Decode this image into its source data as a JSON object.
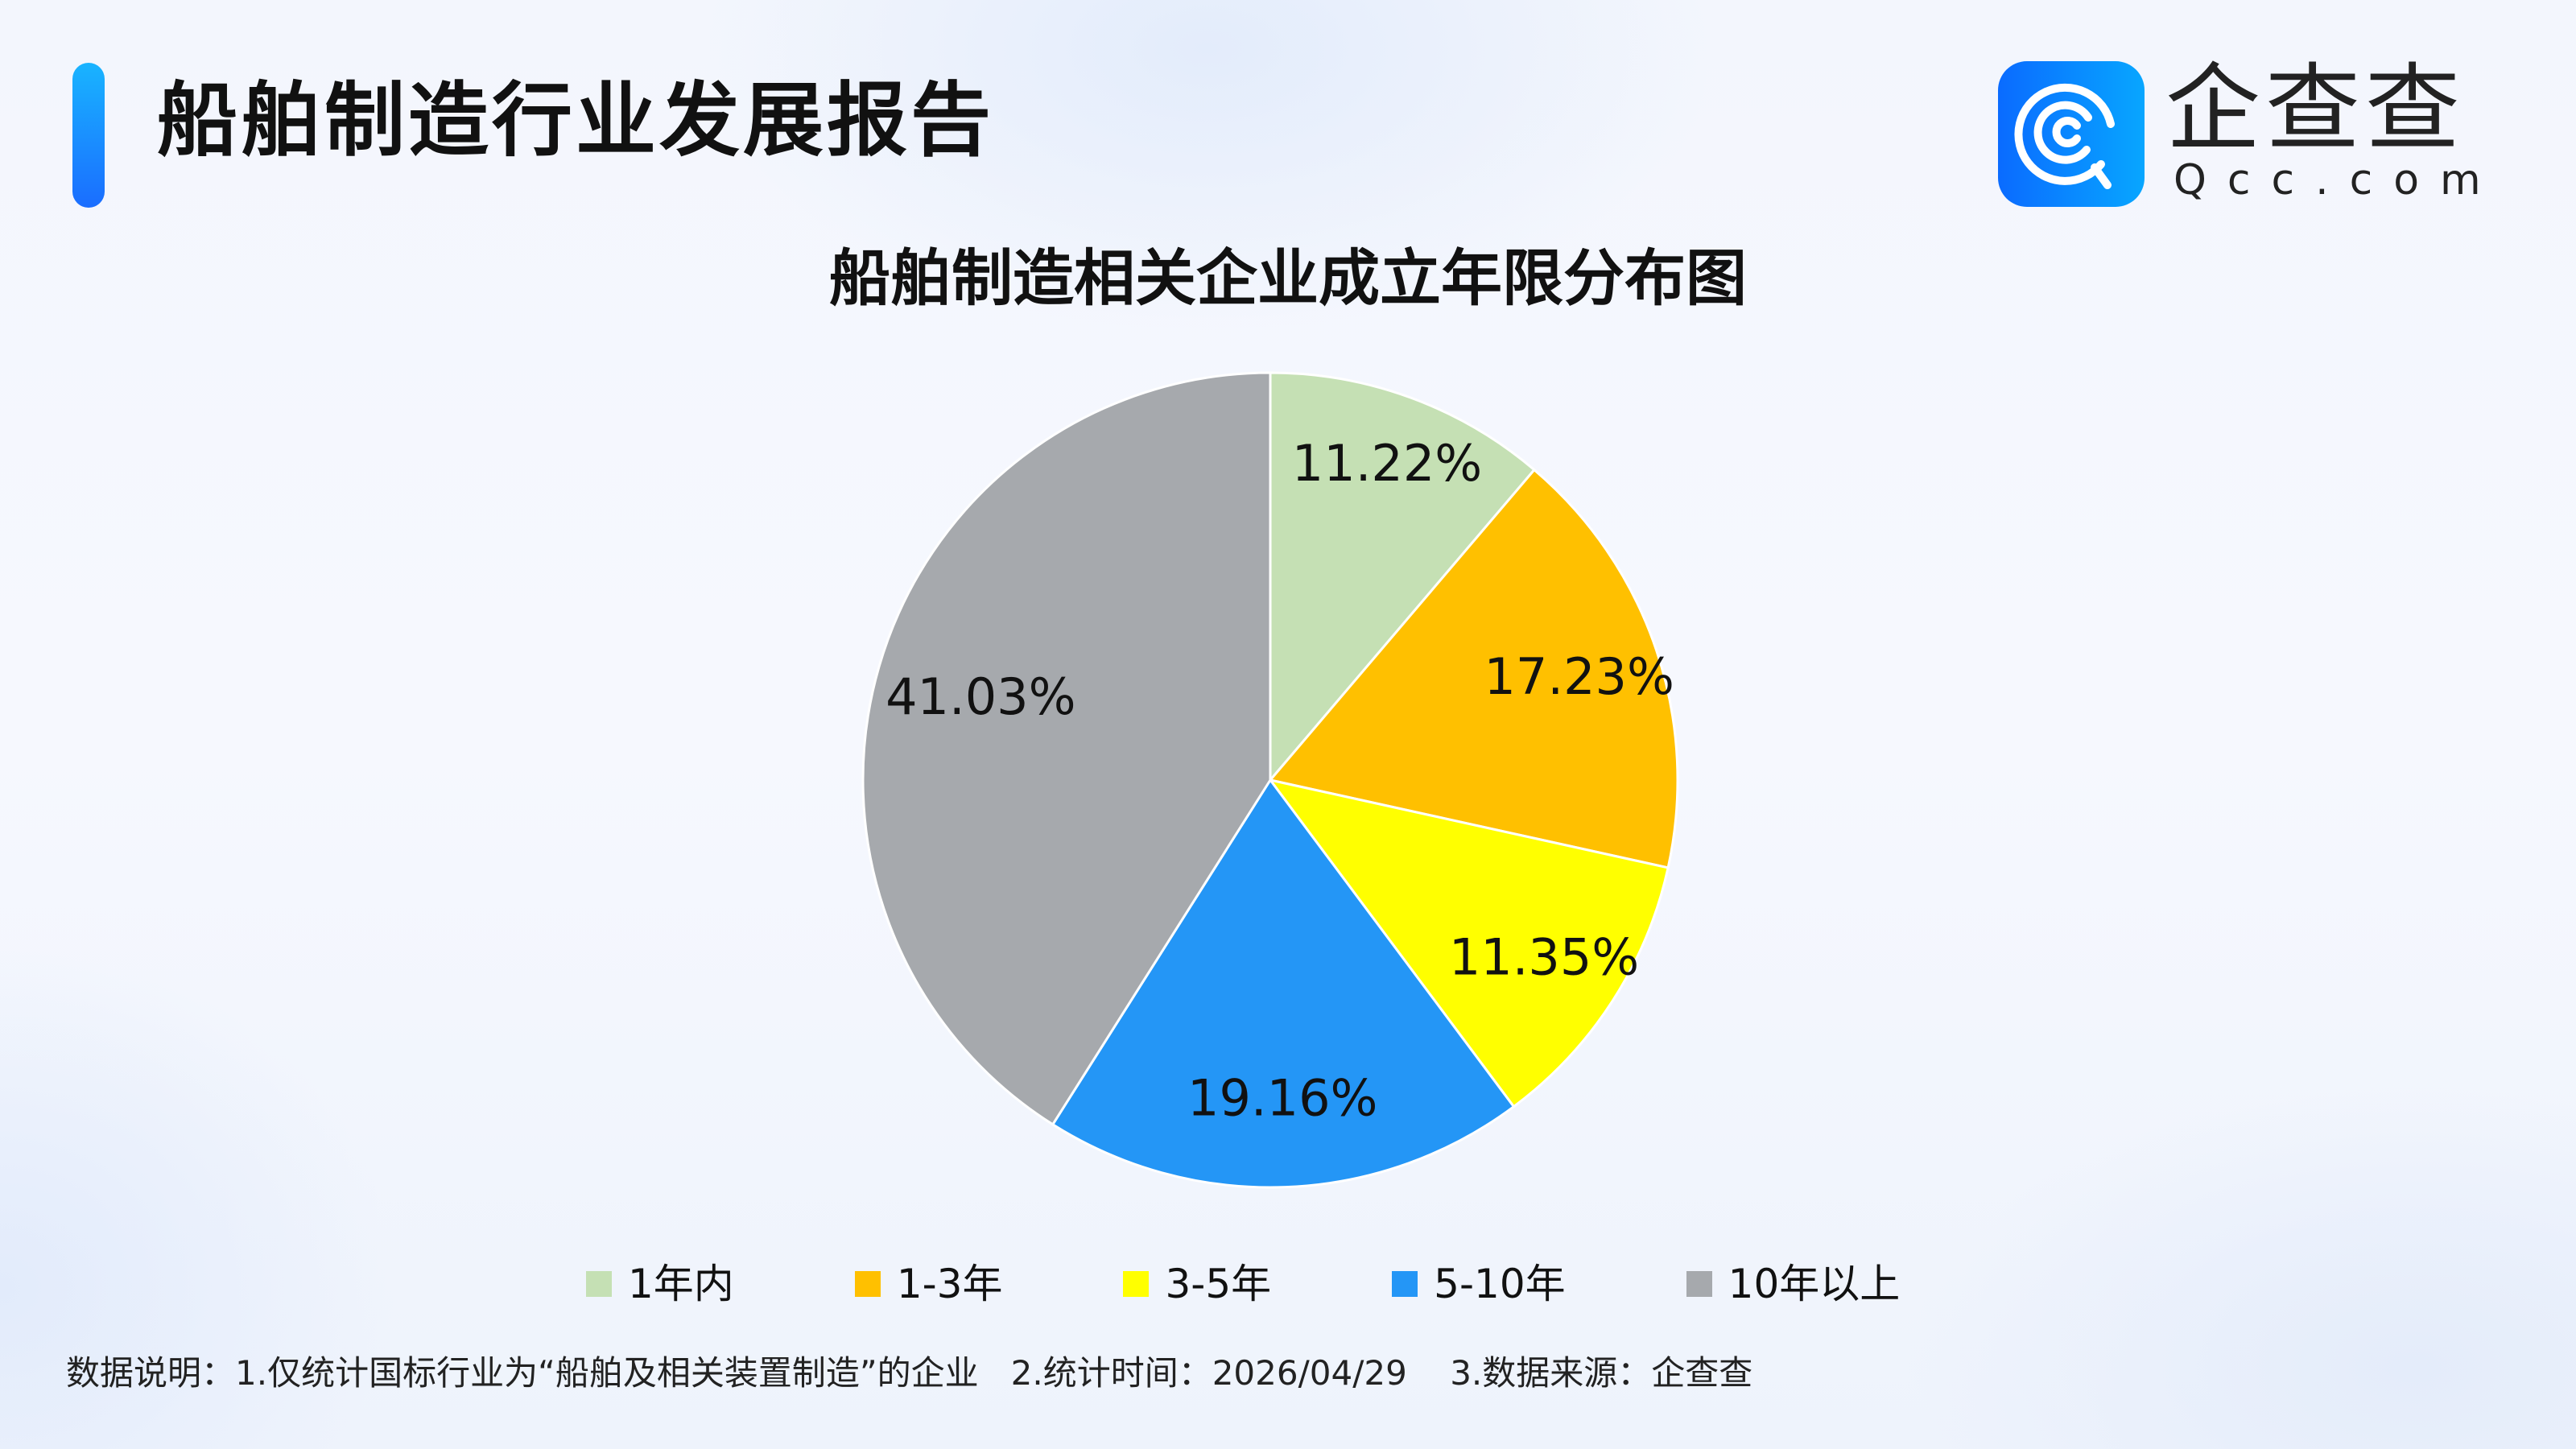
{
  "header": {
    "title": "船舶制造行业发展报告"
  },
  "logo": {
    "cn": "企查查",
    "en": "Qcc.com"
  },
  "chart_data": {
    "type": "pie",
    "title": "船舶制造相关企业成立年限分布图",
    "categories": [
      "1年内",
      "1-3年",
      "3-5年",
      "5-10年",
      "10年以上"
    ],
    "values": [
      11.22,
      17.23,
      11.35,
      19.16,
      41.03
    ],
    "labels": [
      "11.22%",
      "17.23%",
      "11.35%",
      "19.16%",
      "41.03%"
    ],
    "colors": [
      "#c5e0b4",
      "#ffc000",
      "#ffff00",
      "#2496f6",
      "#a6a9ad"
    ],
    "start_angle": "top, clockwise",
    "legend_position": "bottom"
  },
  "footer": {
    "note": "数据说明：1.仅统计国标行业为“船舶及相关装置制造”的企业   2.统计时间：2026/04/29    3.数据来源：企查查"
  }
}
